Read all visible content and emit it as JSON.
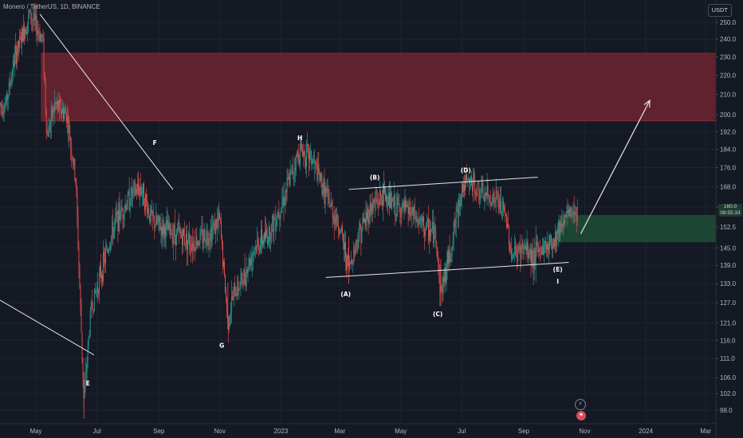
{
  "header": {
    "symbol_line": "Monero / TetherUS, 1D, BINANCE",
    "currency_button": "USDT"
  },
  "price_badge": {
    "price": "160.0",
    "countdown": "08:55:33"
  },
  "colors": {
    "background": "#151924",
    "grid": "#1f2330",
    "up_candle": "#26a69a",
    "down_candle": "#ef5350",
    "resistance_zone": "#7a2531",
    "support_zone": "#1e4a35",
    "drawing_line": "#e6e6e6"
  },
  "icons": {
    "alert_button": "lightning-icon",
    "events_button": "flag-icon"
  },
  "chart_data": {
    "type": "candlestick",
    "title": "Monero / TetherUS, 1D, BINANCE",
    "y_axis": {
      "scale": "log",
      "ticks": [
        98.0,
        102.0,
        106.0,
        111.0,
        116.0,
        121.0,
        127.0,
        133.0,
        139.0,
        145.0,
        152.5,
        160.0,
        168.0,
        176.0,
        184.0,
        192.0,
        200.0,
        210.0,
        220.0,
        230.0,
        240.0,
        250.0
      ]
    },
    "x_axis": {
      "ticks": [
        "May",
        "Jul",
        "Sep",
        "Nov",
        "2023",
        "Mar",
        "May",
        "Jul",
        "Sep",
        "Nov",
        "2024",
        "Mar"
      ]
    },
    "zones": [
      {
        "name": "resistance",
        "from_price": 197,
        "to_price": 232
      },
      {
        "name": "support",
        "from_price": 147,
        "to_price": 157
      }
    ],
    "wave_labels": [
      "E",
      "F",
      "G",
      "H",
      "(A)",
      "(B)",
      "(C)",
      "(D)",
      "(E)",
      "I"
    ],
    "series_path": [
      [
        "2022-04-01",
        205
      ],
      [
        "2022-04-10",
        230
      ],
      [
        "2022-04-25",
        255
      ],
      [
        "2022-05-08",
        240
      ],
      [
        "2022-05-12",
        190
      ],
      [
        "2022-05-20",
        205
      ],
      [
        "2022-06-01",
        200
      ],
      [
        "2022-06-10",
        170
      ],
      [
        "2022-06-18",
        100
      ],
      [
        "2022-06-25",
        125
      ],
      [
        "2022-07-08",
        140
      ],
      [
        "2022-07-20",
        155
      ],
      [
        "2022-08-05",
        165
      ],
      [
        "2022-08-14",
        168
      ],
      [
        "2022-08-25",
        155
      ],
      [
        "2022-09-05",
        152
      ],
      [
        "2022-09-20",
        150
      ],
      [
        "2022-10-05",
        147
      ],
      [
        "2022-10-20",
        150
      ],
      [
        "2022-11-01",
        155
      ],
      [
        "2022-11-09",
        121
      ],
      [
        "2022-11-15",
        130
      ],
      [
        "2022-11-25",
        135
      ],
      [
        "2022-12-05",
        145
      ],
      [
        "2022-12-20",
        150
      ],
      [
        "2023-01-05",
        165
      ],
      [
        "2023-01-15",
        178
      ],
      [
        "2023-01-20",
        184
      ],
      [
        "2023-02-01",
        180
      ],
      [
        "2023-02-10",
        170
      ],
      [
        "2023-02-20",
        160
      ],
      [
        "2023-03-01",
        152
      ],
      [
        "2023-03-10",
        138
      ],
      [
        "2023-03-20",
        150
      ],
      [
        "2023-04-01",
        160
      ],
      [
        "2023-04-15",
        165
      ],
      [
        "2023-04-25",
        160
      ],
      [
        "2023-05-10",
        158
      ],
      [
        "2023-05-25",
        152
      ],
      [
        "2023-06-05",
        150
      ],
      [
        "2023-06-10",
        130
      ],
      [
        "2023-06-20",
        145
      ],
      [
        "2023-07-01",
        168
      ],
      [
        "2023-07-10",
        170
      ],
      [
        "2023-07-20",
        165
      ],
      [
        "2023-08-05",
        163
      ],
      [
        "2023-08-15",
        155
      ],
      [
        "2023-08-20",
        142
      ],
      [
        "2023-09-01",
        145
      ],
      [
        "2023-09-10",
        142
      ],
      [
        "2023-09-20",
        145
      ],
      [
        "2023-10-01",
        148
      ],
      [
        "2023-10-10",
        155
      ],
      [
        "2023-10-18",
        158
      ],
      [
        "2023-10-25",
        160
      ]
    ],
    "last_price": 160.0
  }
}
